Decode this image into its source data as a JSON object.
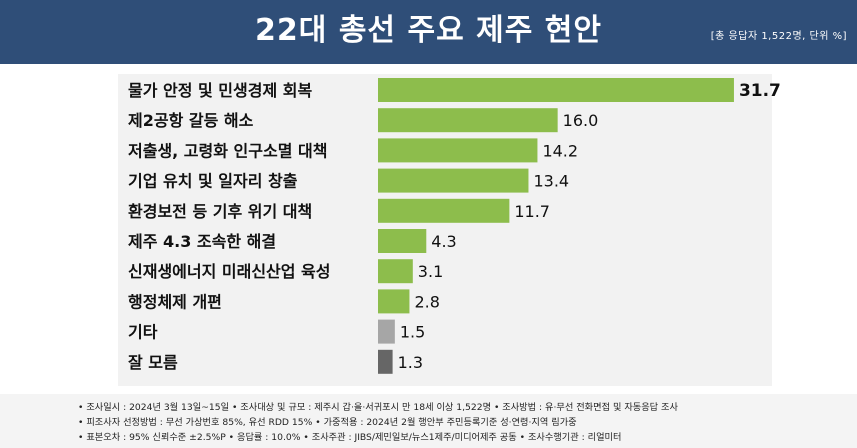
{
  "header": {
    "title": "22대 총선 주요 제주 현안",
    "meta": "[총 응답자 1,522명, 단위 %]"
  },
  "chart_data": {
    "type": "bar",
    "orientation": "horizontal",
    "title": "22대 총선 주요 제주 현안",
    "categories": [
      "물가 안정 및 민생경제 회복",
      "제2공항 갈등 해소",
      "저출생, 고령화 인구소멸 대책",
      "기업 유치 및 일자리 창출",
      "환경보전 등 기후 위기 대책",
      "제주 4.3 조속한 해결",
      "신재생에너지 미래신산업 육성",
      "행정체제 개편",
      "기타",
      "잘 모름"
    ],
    "values": [
      31.7,
      16.0,
      14.2,
      13.4,
      11.7,
      4.3,
      3.1,
      2.8,
      1.5,
      1.3
    ],
    "value_labels": [
      "31.7",
      "16.0",
      "14.2",
      "13.4",
      "11.7",
      "4.3",
      "3.1",
      "2.8",
      "1.5",
      "1.3"
    ],
    "xlim": [
      0,
      35
    ],
    "grid": false,
    "legend": "none",
    "colors": {
      "main": "#8dbd4c",
      "other": "#a6a6a6",
      "unknown": "#666666"
    },
    "bar_color_keys": [
      "main",
      "main",
      "main",
      "main",
      "main",
      "main",
      "main",
      "main",
      "other",
      "unknown"
    ]
  },
  "footer": {
    "line1": "• 조사일시 : 2024년 3월 13일~15일    • 조사대상 및 규모 : 제주시 갑·을·서귀포시 만 18세 이상 1,522명    • 조사방법 : 유·무선 전화면접 및 자동응답 조사",
    "line2": "• 피조사자 선정방법 : 무선 가상번호 85%, 유선 RDD 15%    • 가중적용 : 2024년 2월 행안부 주민등록기준 성·연령·지역 림가중",
    "line3": "• 표본오차 : 95% 신뢰수준 ±2.5%P    • 응답률 : 10.0%    • 조사주관 : JIBS/제민일보/뉴스1제주/미디어제주 공동    • 조사수행기관 : 리얼미터"
  }
}
